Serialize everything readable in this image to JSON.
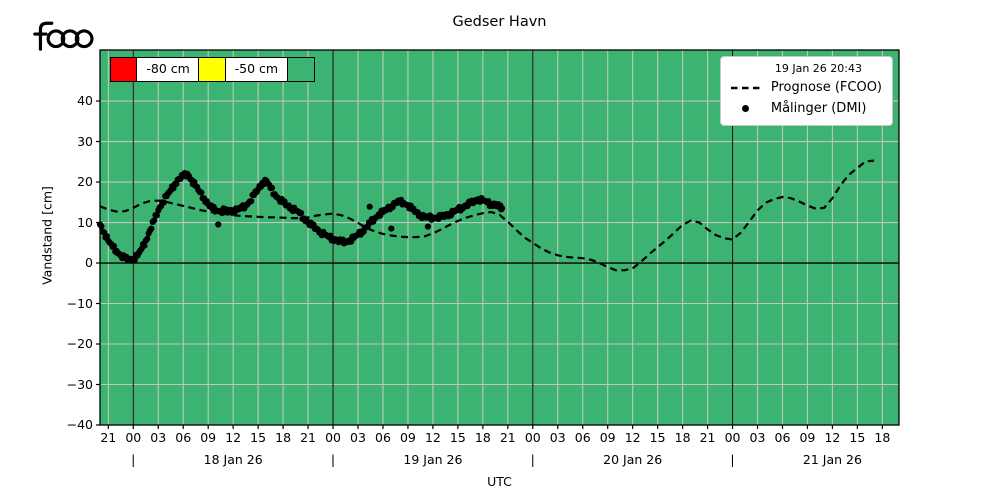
{
  "logo_text": "fcoo",
  "title": "Gedser Havn",
  "axes": {
    "ylabel": "Vandstand [cm]",
    "xlabel": "UTC",
    "ytick_labels": [
      "40",
      "30",
      "20",
      "10",
      "0",
      "−10",
      "−20",
      "−30",
      "−40"
    ],
    "ytick_values": [
      40,
      30,
      20,
      10,
      0,
      -10,
      -20,
      -30,
      -40
    ],
    "xtick_labels": [
      "21",
      "00",
      "03",
      "06",
      "09",
      "12",
      "15",
      "18",
      "21",
      "00",
      "03",
      "06",
      "09",
      "12",
      "15",
      "18",
      "21",
      "00",
      "03",
      "06",
      "09",
      "12",
      "15",
      "18",
      "21",
      "00",
      "03",
      "06",
      "09",
      "12",
      "15",
      "18"
    ],
    "date_labels": [
      "18 Jan 26",
      "19 Jan 26",
      "20 Jan 26",
      "21 Jan 26"
    ],
    "date_separator": "|"
  },
  "warning_legend": {
    "items": [
      {
        "type": "color",
        "color": "#ff0000"
      },
      {
        "type": "label",
        "text": "-80 cm"
      },
      {
        "type": "color",
        "color": "#ffff00"
      },
      {
        "type": "label",
        "text": "-50 cm"
      },
      {
        "type": "color",
        "color": "#3cb371"
      }
    ]
  },
  "legend": {
    "title": "19 Jan 26 20:43",
    "series": [
      {
        "marker": "dashed-line",
        "label": "Prognose (FCOO)"
      },
      {
        "marker": "dot",
        "label": "Målinger (DMI)"
      }
    ]
  },
  "colors": {
    "plot_bg": "#3cb371",
    "grid": "#bcc8be",
    "midnight_line": "#1a1a1a",
    "zero_line": "#000000",
    "series_line": "#000000",
    "warning_red": "#ff0000",
    "warning_yellow": "#ffff00"
  },
  "chart_data": {
    "type": "line",
    "title": "Gedser Havn",
    "xlabel": "UTC",
    "ylabel": "Vandstand [cm]",
    "ylim": [
      -40,
      52.6
    ],
    "yticks": [
      40,
      30,
      20,
      10,
      0,
      -10,
      -20,
      -30,
      -40
    ],
    "x_axis": {
      "start": "17 Jan 26 20:00 UTC",
      "end": "21 Jan 26 20:00 UTC",
      "hours_total": 96,
      "tick_interval_hours": 3,
      "first_tick_hour_offset": 1,
      "midnight_hour_offsets": [
        4,
        28,
        52,
        76
      ],
      "day_center_hour_offsets": [
        16,
        40,
        64,
        88
      ]
    },
    "grid": true,
    "legend_position": "upper right",
    "series": [
      {
        "name": "Prognose (FCOO)",
        "style": "dashed",
        "t_start_hours": 0,
        "t_step_hours": 1,
        "values": [
          14.0,
          13.2,
          12.7,
          12.8,
          13.6,
          14.7,
          15.3,
          15.4,
          15.1,
          14.6,
          14.1,
          13.6,
          13.1,
          12.7,
          12.4,
          12.1,
          11.8,
          11.6,
          11.5,
          11.4,
          11.3,
          11.3,
          11.2,
          11.1,
          11.1,
          11.3,
          11.7,
          12.0,
          12.2,
          11.8,
          11.0,
          9.9,
          8.7,
          7.8,
          7.2,
          6.8,
          6.5,
          6.4,
          6.4,
          6.6,
          7.3,
          8.3,
          9.4,
          10.4,
          11.2,
          11.8,
          12.3,
          12.6,
          11.9,
          10.2,
          8.2,
          6.3,
          5.0,
          3.6,
          2.6,
          1.9,
          1.5,
          1.3,
          1.2,
          0.8,
          0.0,
          -1.0,
          -1.8,
          -1.8,
          -1.3,
          0.3,
          2.2,
          3.9,
          5.6,
          7.5,
          9.4,
          10.5,
          10.0,
          8.3,
          6.9,
          6.1,
          5.8,
          7.5,
          10.2,
          13.0,
          14.9,
          15.8,
          16.3,
          16.0,
          15.2,
          14.2,
          13.4,
          13.6,
          16.0,
          19.3,
          21.8,
          23.5,
          25.1,
          25.3
        ]
      },
      {
        "name": "Målinger (DMI)",
        "style": "dots",
        "t": [
          0,
          0.5,
          1,
          1.5,
          2,
          2.5,
          3,
          3.5,
          4,
          4.5,
          5,
          5.5,
          6,
          6.5,
          7,
          7.5,
          8,
          8.5,
          9,
          9.5,
          10,
          10.5,
          11,
          11.5,
          12,
          12.5,
          13,
          13.5,
          14,
          14.5,
          15,
          15.5,
          16,
          16.5,
          17,
          17.5,
          18,
          18.5,
          19,
          19.5,
          20,
          20.5,
          21,
          21.5,
          22,
          22.5,
          23,
          23.5,
          24,
          24.5,
          25,
          25.5,
          26,
          26.5,
          27,
          27.5,
          28,
          28.5,
          29,
          29.5,
          30,
          30.5,
          31,
          31.5,
          32,
          32.5,
          33,
          33.5,
          34,
          34.5,
          35,
          35.5,
          36,
          36.5,
          37,
          37.5,
          38,
          38.5,
          39,
          39.5,
          40,
          40.5,
          41,
          41.5,
          42,
          42.5,
          43,
          43.5,
          44,
          44.5,
          45,
          45.5,
          46,
          46.5,
          47,
          47.5,
          48,
          48.3
        ],
        "values": [
          9.5,
          7.5,
          5.5,
          4.0,
          3.0,
          1.8,
          1.2,
          0.8,
          1.0,
          1.8,
          3.5,
          5.5,
          8.0,
          10.5,
          13.0,
          15.0,
          16.5,
          18.0,
          19.5,
          20.8,
          21.5,
          22.0,
          20.5,
          19.0,
          17.5,
          16.0,
          14.5,
          13.5,
          13.0,
          12.8,
          13.0,
          12.7,
          13.0,
          13.2,
          13.5,
          14.2,
          15.2,
          16.8,
          18.2,
          19.8,
          20.3,
          18.5,
          17.0,
          15.8,
          15.0,
          14.2,
          13.6,
          13.0,
          12.3,
          11.0,
          10.0,
          9.2,
          8.5,
          7.6,
          7.0,
          6.4,
          6.0,
          5.5,
          5.3,
          5.2,
          5.6,
          6.2,
          7.0,
          7.8,
          8.8,
          10.0,
          11.0,
          12.0,
          12.6,
          13.3,
          14.0,
          14.8,
          15.2,
          14.8,
          14.3,
          13.3,
          12.5,
          11.8,
          11.3,
          11.2,
          11.2,
          11.3,
          11.4,
          11.7,
          12.1,
          12.6,
          13.1,
          13.7,
          14.3,
          14.8,
          15.2,
          15.8,
          15.4,
          15.0,
          14.4,
          14.6,
          13.8,
          13.5
        ],
        "outliers": [
          [
            14.2,
            9.5
          ],
          [
            32.4,
            13.9
          ],
          [
            35.0,
            8.5
          ],
          [
            39.4,
            9.0
          ]
        ]
      }
    ]
  }
}
